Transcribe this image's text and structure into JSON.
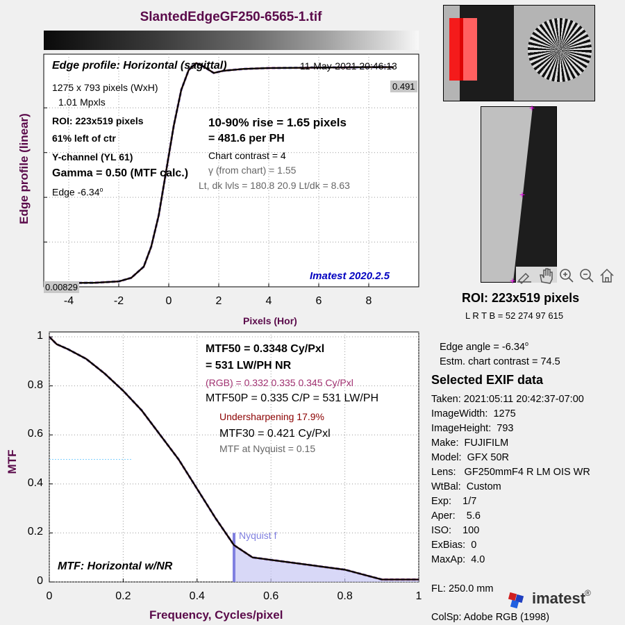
{
  "title": "SlantedEdgeGF250-6565-1.tif",
  "edge_panel": {
    "title": "Edge profile: Horizontal (sagittal)",
    "timestamp": "11-May-2021 20:46:13",
    "size": "1275 x 793 pixels (WxH)",
    "mpxls": "1.01 Mpxls",
    "roi": "ROI:  223x519 pixels",
    "position": "61% left of ctr",
    "channel": "Y-channel  (YL 61)",
    "gamma": "Gamma = 0.50 (MTF calc.)",
    "edge": "Edge  -6.34",
    "edge_deg": "o",
    "rise": "10-90% rise = 1.65 pixels",
    "per_ph": "=  481.6 per PH",
    "contrast": "Chart contrast = 4",
    "gamma_chart": "γ (from chart) =  1.55",
    "levels": "Lt, dk lvls = 180.8  20.9  Lt/dk = 8.63",
    "version": "Imatest 2020.2.5",
    "max_label": "0.491",
    "min_label": "0.00829",
    "ylabel": "Edge profile (linear)",
    "xlabel": "Pixels (Hor)",
    "xticks": [
      "-4",
      "-2",
      "0",
      "2",
      "4",
      "6",
      "8"
    ]
  },
  "mtf_panel": {
    "mtf50": "MTF50 = 0.3348 Cy/Pxl",
    "mtf50_lw": "=  531 LW/PH  NR",
    "rgb": "(RGB) = 0.332  0.335  0.345 Cy/Pxl",
    "mtf50p": "MTF50P = 0.335 C/P = 531 LW/PH",
    "undersharp": "Undersharpening 17.9%",
    "mtf30": "MTF30 = 0.421 Cy/Pxl",
    "nyq": "MTF at Nyquist = 0.15",
    "nyq_label": "Nyquist f",
    "corner_label": "MTF: Horizontal w/NR",
    "ylabel": "MTF",
    "xlabel": "Frequency, Cycles/pixel",
    "xticks": [
      "0",
      "0.2",
      "0.4",
      "0.6",
      "0.8",
      "1"
    ],
    "yticks": [
      "0",
      "0.2",
      "0.4",
      "0.6",
      "0.8",
      "1"
    ]
  },
  "right_panel": {
    "roi": "ROI:  223x519 pixels",
    "lrtb": "L R  T B = 52 274  97 615",
    "edge_angle": "Edge angle = -6.34",
    "edge_angle_deg": "o",
    "contrast": "Estm. chart contrast = 74.5",
    "exif_title": "Selected EXIF data",
    "exif": [
      "Taken: 2021:05:11 20:42:37-07:00",
      "ImageWidth:  1275",
      "ImageHeight:  793",
      "Make:  FUJIFILM",
      "Model:  GFX 50R",
      "Lens:   GF250mmF4 R LM OIS WR",
      "WtBal:  Custom",
      "Exp:    1/7",
      "Aper:    5.6",
      "ISO:    100",
      "ExBias:  0",
      "MaxAp:  4.0"
    ],
    "fl": "FL:     250.0 mm",
    "colsp": "ColSp:  Adobe RGB (1998)",
    "logo": "imatest",
    "logo_mark": "®"
  },
  "colors": {
    "title": "#5a0a4a",
    "mean_curve": "#000000",
    "reference_curve": "#8080e0",
    "version": "#0000c0",
    "rgb_text": "#a03070",
    "undersharp_text": "#8b0000",
    "roi_overlay": "#ff0000",
    "crosshair": "#e000e0"
  },
  "chart_data": [
    {
      "type": "line",
      "title": "Edge profile: Horizontal (sagittal)",
      "xlabel": "Pixels (Hor)",
      "ylabel": "Edge profile (linear)",
      "xlim": [
        -5,
        10
      ],
      "ylim": [
        0,
        0.52
      ],
      "grid": true,
      "x": [
        -4.5,
        -3,
        -2,
        -1.5,
        -1,
        -0.7,
        -0.4,
        -0.1,
        0.2,
        0.5,
        0.8,
        1.1,
        1.4,
        1.8,
        2.2,
        3,
        4,
        6,
        8,
        9
      ],
      "y": [
        0.0083,
        0.009,
        0.012,
        0.02,
        0.045,
        0.09,
        0.16,
        0.26,
        0.36,
        0.44,
        0.485,
        0.5,
        0.492,
        0.478,
        0.483,
        0.487,
        0.489,
        0.49,
        0.491,
        0.491
      ]
    },
    {
      "type": "line",
      "title": "MTF: Horizontal w/NR",
      "xlabel": "Frequency, Cycles/pixel",
      "ylabel": "MTF",
      "xlim": [
        0,
        1
      ],
      "ylim": [
        0,
        1.02
      ],
      "grid": true,
      "x": [
        0,
        0.02,
        0.05,
        0.1,
        0.15,
        0.2,
        0.25,
        0.3,
        0.35,
        0.4,
        0.45,
        0.5,
        0.55,
        0.6,
        0.65,
        0.7,
        0.75,
        0.8,
        0.85,
        0.9,
        0.95,
        1.0
      ],
      "y": [
        1.0,
        0.97,
        0.95,
        0.91,
        0.85,
        0.78,
        0.7,
        0.6,
        0.5,
        0.38,
        0.26,
        0.15,
        0.1,
        0.09,
        0.08,
        0.07,
        0.06,
        0.05,
        0.03,
        0.01,
        0.01,
        0.01
      ]
    }
  ]
}
